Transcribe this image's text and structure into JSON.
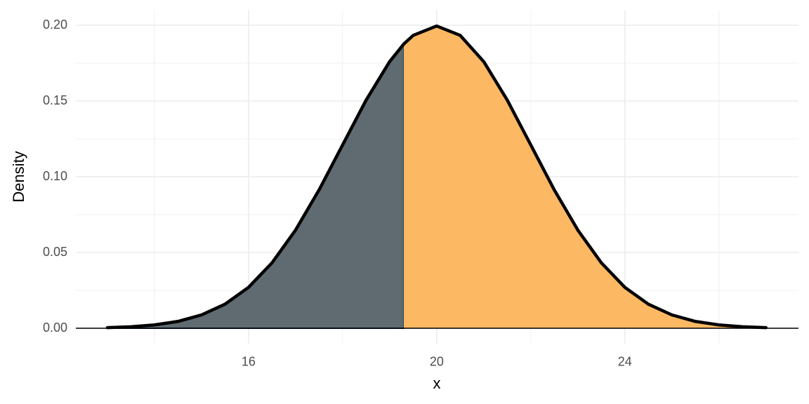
{
  "chart_data": {
    "type": "area",
    "x_label": "x",
    "y_label": "Density",
    "x": [
      13,
      13.5,
      14,
      14.5,
      15,
      15.5,
      16,
      16.5,
      17,
      17.5,
      18,
      18.5,
      19,
      19.3,
      19.5,
      20,
      20.5,
      21,
      21.5,
      22,
      22.5,
      23,
      23.5,
      24,
      24.5,
      25,
      25.5,
      26,
      26.5,
      27
    ],
    "values": [
      0.0004,
      0.001,
      0.0022,
      0.0045,
      0.0088,
      0.0159,
      0.027,
      0.0432,
      0.0648,
      0.0913,
      0.121,
      0.1506,
      0.176,
      0.1876,
      0.1933,
      0.1995,
      0.1933,
      0.176,
      0.1506,
      0.121,
      0.0913,
      0.0648,
      0.0432,
      0.027,
      0.0159,
      0.0088,
      0.0045,
      0.0022,
      0.001,
      0.0004
    ],
    "shade_split_x": 19.3,
    "fill_colors": [
      "#5f6b70",
      "#fdb863"
    ],
    "line_color": "#000000",
    "xlim": [
      12.33,
      27.69
    ],
    "ylim": [
      -0.01,
      0.21
    ],
    "xticks": [
      16,
      20,
      24
    ],
    "yticks": [
      {
        "value": 0,
        "label": "0.00"
      },
      {
        "value": 0.05,
        "label": "0.05"
      },
      {
        "value": 0.1,
        "label": "0.10"
      },
      {
        "value": 0.15,
        "label": "0.15"
      },
      {
        "value": 0.2,
        "label": "0.20"
      }
    ],
    "minor_xticks": [
      14,
      18,
      22,
      26
    ],
    "minor_yticks": [
      0.025,
      0.075,
      0.125,
      0.175
    ],
    "grid": true
  }
}
